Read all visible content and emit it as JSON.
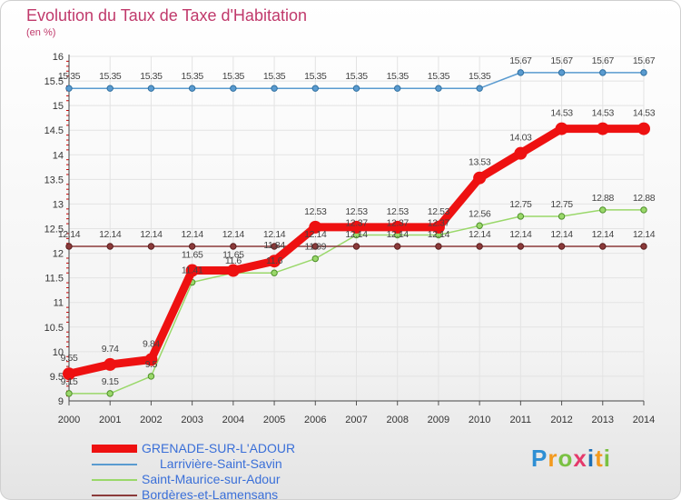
{
  "header": {
    "title": "Evolution du Taux de Taxe d'Habitation",
    "subtitle": "(en %)"
  },
  "logo": {
    "text": "Proxiti",
    "colors": [
      "#2e8fd4",
      "#f39a1e",
      "#7ac143",
      "#e53a6b",
      "#1f6fb5",
      "#f39a1e",
      "#7ac143"
    ]
  },
  "chart_data": {
    "type": "line",
    "title": "Evolution du Taux de Taxe d'Habitation",
    "ylabel": "(en %)",
    "xlabel": "",
    "ylim": [
      9,
      16
    ],
    "yticks": [
      "9",
      "9.5",
      "10",
      "10.5",
      "11",
      "11.5",
      "12",
      "12.5",
      "13",
      "13.5",
      "14",
      "14.5",
      "15",
      "15.5",
      "16"
    ],
    "categories": [
      "2000",
      "2001",
      "2002",
      "2003",
      "2004",
      "2005",
      "2006",
      "2007",
      "2008",
      "2009",
      "2010",
      "2011",
      "2012",
      "2013",
      "2014"
    ],
    "grid": true,
    "legend_position": "bottom-left",
    "series": [
      {
        "name": "Larrivière-Saint-Savin",
        "color": "#5a9bd0",
        "values": [
          15.35,
          15.35,
          15.35,
          15.35,
          15.35,
          15.35,
          15.35,
          15.35,
          15.35,
          15.35,
          15.35,
          15.67,
          15.67,
          15.67,
          15.67
        ],
        "labels": [
          "15.35",
          "15.35",
          "15.35",
          "15.35",
          "15.35",
          "15.35",
          "15.35",
          "15.35",
          "15.35",
          "15.35",
          "15.35",
          "15.67",
          "15.67",
          "15.67",
          "15.67"
        ]
      },
      {
        "name": "Saint-Maurice-sur-Adour",
        "color": "#9ad86a",
        "values": [
          9.15,
          9.15,
          9.5,
          11.41,
          11.6,
          11.6,
          11.89,
          12.37,
          12.37,
          12.37,
          12.56,
          12.75,
          12.75,
          12.88,
          12.88
        ],
        "labels": [
          "9.15",
          "9.15",
          "9.5",
          "11.41",
          "11.6",
          "11.6",
          "11.89",
          "12.37",
          "12.37",
          "12.37",
          "12.56",
          "12.75",
          "12.75",
          "12.88",
          "12.88"
        ]
      },
      {
        "name": "Bordères-et-Lamensans",
        "color": "#8b3a3a",
        "values": [
          12.14,
          12.14,
          12.14,
          12.14,
          12.14,
          12.14,
          12.14,
          12.14,
          12.14,
          12.14,
          12.14,
          12.14,
          12.14,
          12.14,
          12.14
        ],
        "labels": [
          "12.14",
          "12.14",
          "12.14",
          "12.14",
          "12.14",
          "12.14",
          "12.14",
          "12.14",
          "12.14",
          "12.14",
          "12.14",
          "12.14",
          "12.14",
          "12.14",
          "12.14"
        ]
      },
      {
        "name": "GRENADE-SUR-L'ADOUR",
        "color": "#ee1111",
        "values": [
          9.55,
          9.74,
          9.84,
          11.65,
          11.65,
          11.84,
          12.53,
          12.53,
          12.53,
          12.53,
          13.53,
          14.03,
          14.53,
          14.53,
          14.53
        ],
        "labels": [
          "9.55",
          "9.74",
          "9.84",
          "11.65",
          "11.65",
          "11.84",
          "12.53",
          "12.53",
          "12.53",
          "12.53",
          "13.53",
          "14.03",
          "14.53",
          "14.53",
          "14.53"
        ]
      }
    ],
    "legend_order": [
      "GRENADE-SUR-L'ADOUR",
      "Larrivière-Saint-Savin",
      "Saint-Maurice-sur-Adour",
      "Bordères-et-Lamensans"
    ]
  }
}
